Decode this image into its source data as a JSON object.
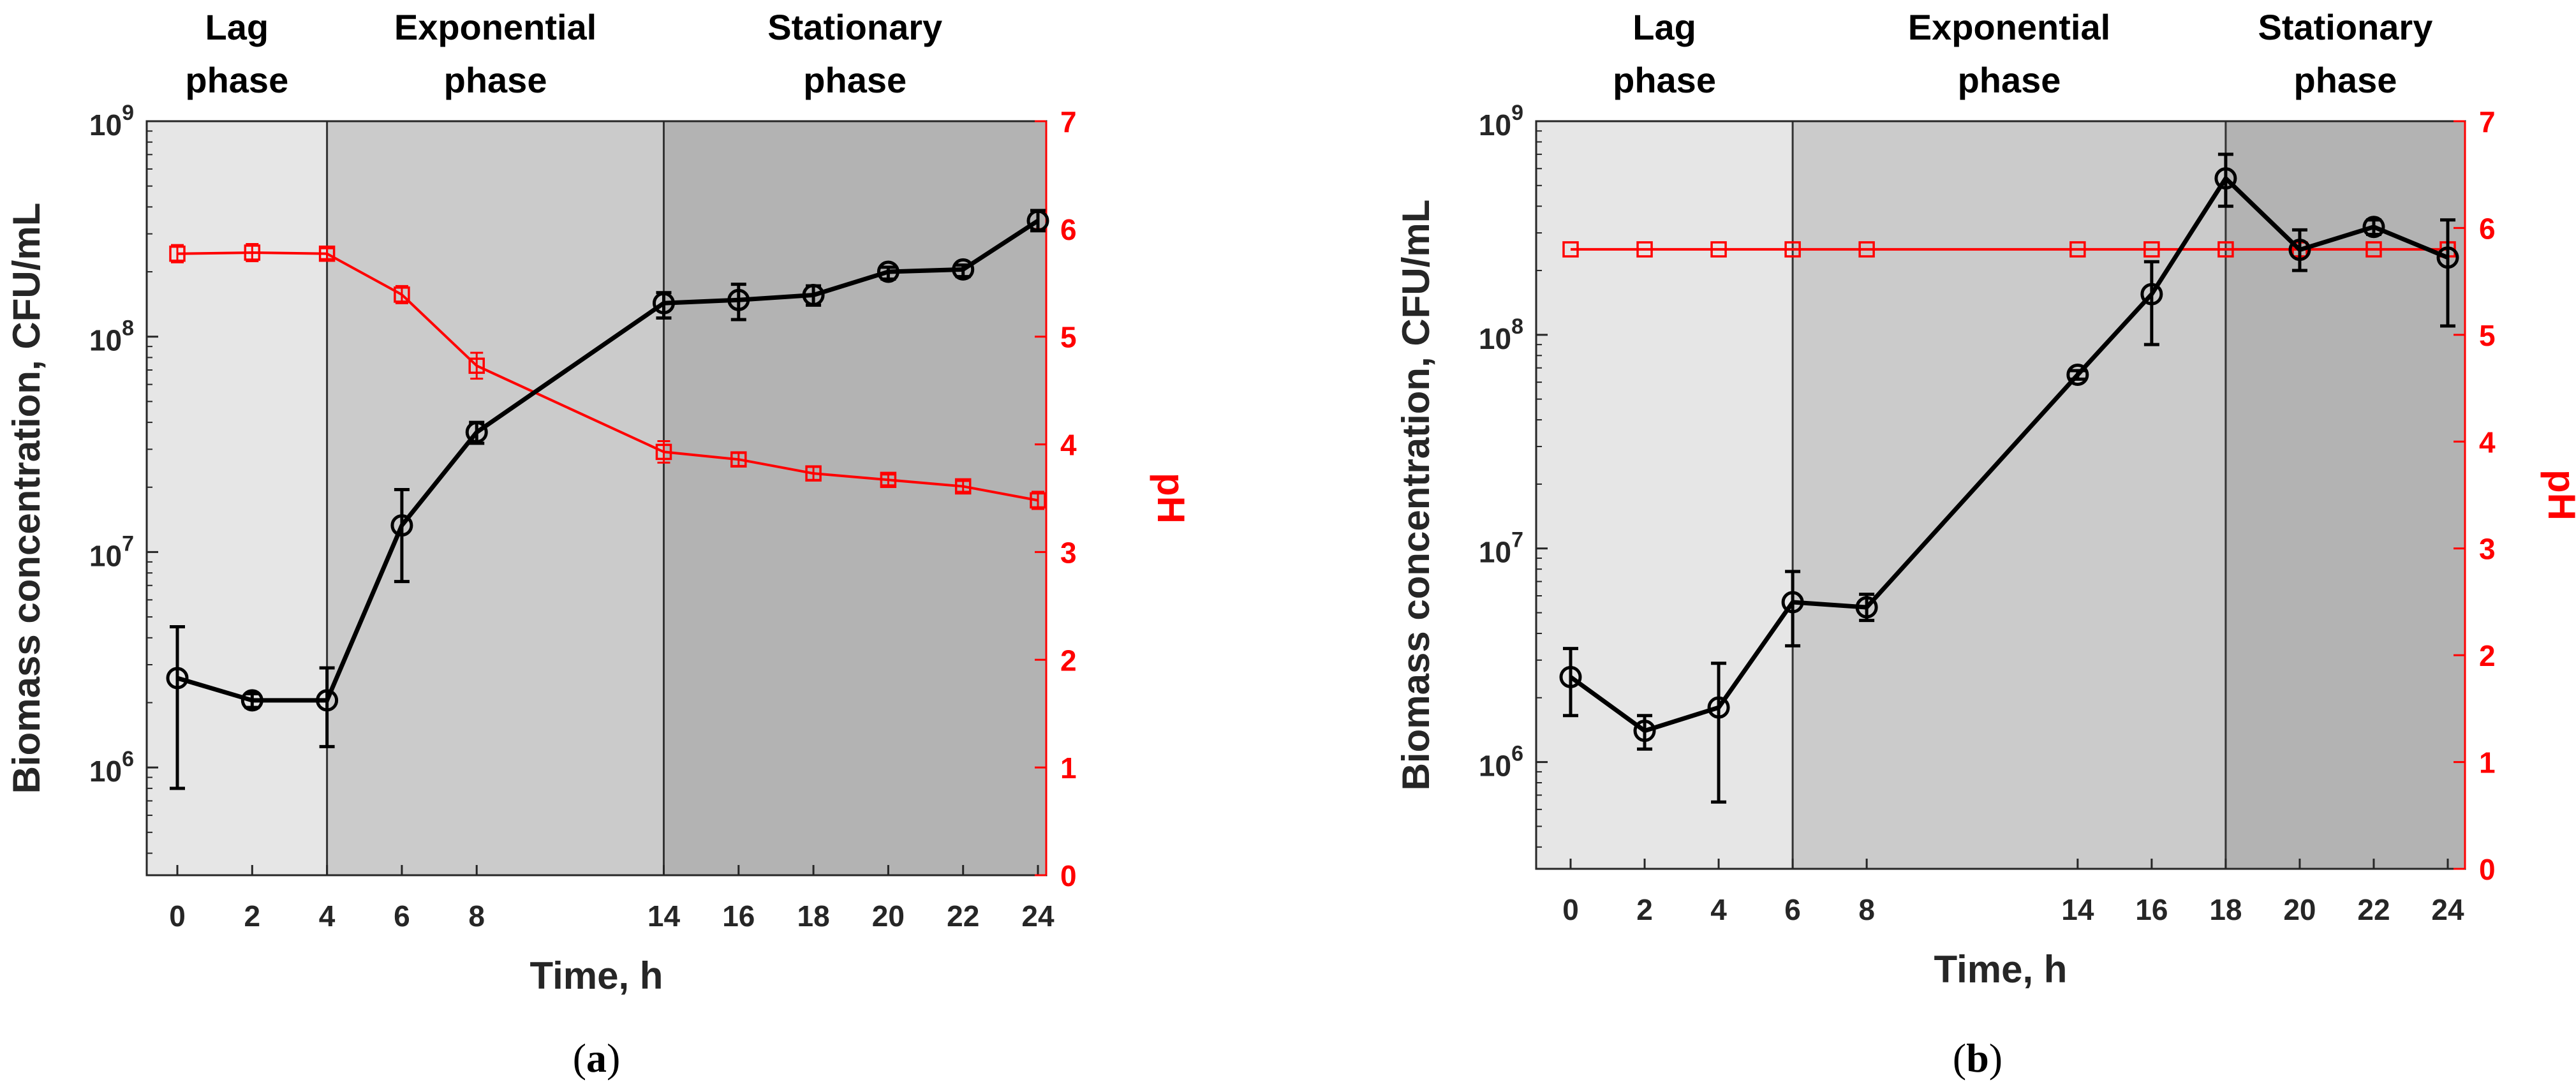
{
  "chart_data": [
    {
      "panel_label_prefix": "(",
      "panel_letter": "a",
      "panel_label_suffix": ")",
      "type": "line",
      "xlabel": "Time, h",
      "ylabel_left": "Biomass concentration, CFU/mL",
      "ylabel_right": "pH",
      "x_tick_labels": [
        "0",
        "2",
        "4",
        "6",
        "8",
        "14",
        "16",
        "18",
        "20",
        "22",
        "24"
      ],
      "y_left_tick_exponents": [
        "6",
        "7",
        "8",
        "9"
      ],
      "y_left_tick_base": "10",
      "y_left_range_log10": [
        5.5,
        9.0
      ],
      "y_right_ticks": [
        "0",
        "1",
        "2",
        "3",
        "4",
        "5",
        "6",
        "7"
      ],
      "y_right_range": [
        0,
        7
      ],
      "phases": [
        {
          "line1": "Lag",
          "line2": "phase",
          "start_index": -0.3,
          "end_index": 2,
          "shade": "#e6e6e6"
        },
        {
          "line1": "Exponential",
          "line2": "phase",
          "start_index": 2,
          "end_index": 5,
          "shade": "#cbcbcb"
        },
        {
          "line1": "Stationary",
          "line2": "phase",
          "start_index": 5,
          "end_index": 10.3,
          "shade": "#b3b3b3"
        }
      ],
      "series": [
        {
          "name": "Biomass",
          "axis": "left",
          "color": "#000000",
          "marker": "circle",
          "x_index": [
            0,
            1,
            2,
            3,
            4,
            5,
            6,
            7,
            8,
            9,
            10
          ],
          "values": [
            2600000.0,
            2050000.0,
            2050000.0,
            13300000.0,
            36000000.0,
            143000000.0,
            148000000.0,
            156000000.0,
            200000000.0,
            205000000.0,
            345000000.0
          ],
          "err_low": [
            800000.0,
            1900000.0,
            1250000.0,
            7300000.0,
            32000000.0,
            122000000.0,
            120000000.0,
            140000000.0,
            185000000.0,
            190000000.0,
            310000000.0
          ],
          "err_high": [
            4500000.0,
            2200000.0,
            2900000.0,
            19500000.0,
            40000000.0,
            160000000.0,
            175000000.0,
            172000000.0,
            210000000.0,
            215000000.0,
            385000000.0
          ]
        },
        {
          "name": "pH",
          "axis": "right",
          "color": "#ff0000",
          "marker": "square",
          "x_index": [
            0,
            1,
            2,
            3,
            4,
            5,
            6,
            7,
            8,
            9,
            10
          ],
          "values": [
            5.77,
            5.78,
            5.77,
            5.39,
            4.73,
            3.93,
            3.86,
            3.73,
            3.67,
            3.61,
            3.48
          ],
          "err": [
            0.08,
            0.08,
            0.05,
            0.08,
            0.12,
            0.1,
            0.06,
            0.06,
            0.05,
            0.05,
            0.08
          ]
        }
      ]
    },
    {
      "panel_label_prefix": "(",
      "panel_letter": "b",
      "panel_label_suffix": ")",
      "type": "line",
      "xlabel": "Time, h",
      "ylabel_left": "Biomass concentration, CFU/mL",
      "ylabel_right": "pH",
      "x_tick_labels": [
        "0",
        "2",
        "4",
        "6",
        "8",
        "14",
        "16",
        "18",
        "20",
        "22",
        "24"
      ],
      "y_left_tick_exponents": [
        "6",
        "7",
        "8",
        "9"
      ],
      "y_left_tick_base": "10",
      "y_left_range_log10": [
        5.5,
        9.0
      ],
      "y_right_ticks": [
        "0",
        "1",
        "2",
        "3",
        "4",
        "5",
        "6",
        "7"
      ],
      "y_right_range": [
        0,
        7
      ],
      "phases": [
        {
          "line1": "Lag",
          "line2": "phase",
          "start_index": -0.3,
          "end_index": 3,
          "shade": "#e6e6e6"
        },
        {
          "line1": "Exponential",
          "line2": "phase",
          "start_index": 3,
          "end_index": 7,
          "shade": "#cbcbcb"
        },
        {
          "line1": "Stationary",
          "line2": "phase",
          "start_index": 7,
          "end_index": 10.3,
          "shade": "#b3b3b3"
        }
      ],
      "series": [
        {
          "name": "Biomass",
          "axis": "left",
          "color": "#000000",
          "marker": "circle",
          "x_index": [
            0,
            1,
            2,
            3,
            4,
            5,
            6,
            7,
            8,
            9,
            10
          ],
          "values": [
            2500000.0,
            1400000.0,
            1800000.0,
            5600000.0,
            5300000.0,
            65000000.0,
            155000000.0,
            540000000.0,
            250000000.0,
            320000000.0,
            230000000.0
          ],
          "err_low": [
            1650000.0,
            1150000.0,
            650000.0,
            3500000.0,
            4600000.0,
            62000000.0,
            90000000.0,
            400000000.0,
            200000000.0,
            295000000.0,
            110000000.0
          ],
          "err_high": [
            3400000.0,
            1650000.0,
            2900000.0,
            7800000.0,
            6100000.0,
            68000000.0,
            220000000.0,
            700000000.0,
            310000000.0,
            345000000.0,
            345000000.0
          ]
        },
        {
          "name": "pH",
          "axis": "right",
          "color": "#ff0000",
          "marker": "square",
          "x_index": [
            0,
            1,
            2,
            3,
            4,
            5,
            6,
            7,
            8,
            9,
            10
          ],
          "values": [
            5.8,
            5.8,
            5.8,
            5.8,
            5.8,
            5.8,
            5.8,
            5.8,
            5.8,
            5.8,
            5.8
          ],
          "err": [
            0,
            0,
            0,
            0,
            0,
            0,
            0,
            0,
            0,
            0,
            0
          ]
        }
      ]
    }
  ]
}
